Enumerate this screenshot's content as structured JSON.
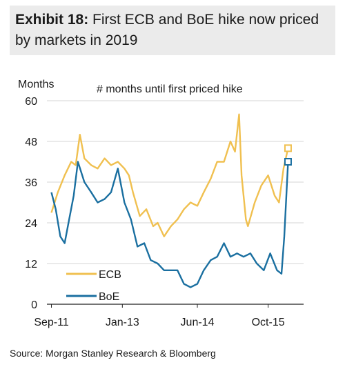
{
  "header": {
    "label": "Exhibit 18:",
    "title": "First ECB and BoE hike now priced by markets in 2019"
  },
  "source": "Source: Morgan Stanley Research & Bloomberg",
  "colors": {
    "ecb": "#f0c050",
    "boe": "#1a6fa0",
    "grid": "#d4d4d4",
    "axis": "#222222",
    "header_bg": "#ebebeb"
  },
  "chart_data": {
    "type": "line",
    "title": "# months until first priced hike",
    "ylabel": "Months",
    "xlabel": "",
    "ylim": [
      0,
      60
    ],
    "yticks": [
      0,
      12,
      24,
      36,
      48,
      60
    ],
    "xlim": [
      "2011-08-01",
      "2016-06-01"
    ],
    "xticks": [
      {
        "date": "2011-09-01",
        "label": "Sep-11"
      },
      {
        "date": "2013-01-01",
        "label": "Jan-13"
      },
      {
        "date": "2014-06-01",
        "label": "Jun-14"
      },
      {
        "date": "2015-10-01",
        "label": "Oct-15"
      }
    ],
    "grid": true,
    "legend_position": "bottom-left",
    "series": [
      {
        "name": "ECB",
        "color": "#f0c050",
        "marker": "square-end",
        "points": [
          [
            "2011-09-01",
            27
          ],
          [
            "2011-10-15",
            33
          ],
          [
            "2011-12-01",
            38
          ],
          [
            "2012-01-15",
            42
          ],
          [
            "2012-02-15",
            41
          ],
          [
            "2012-03-15",
            50
          ],
          [
            "2012-04-15",
            43
          ],
          [
            "2012-06-01",
            41
          ],
          [
            "2012-07-15",
            40
          ],
          [
            "2012-09-01",
            43
          ],
          [
            "2012-10-15",
            41
          ],
          [
            "2012-12-01",
            42
          ],
          [
            "2013-01-15",
            40
          ],
          [
            "2013-02-15",
            38
          ],
          [
            "2013-03-15",
            33
          ],
          [
            "2013-05-01",
            26
          ],
          [
            "2013-06-15",
            28
          ],
          [
            "2013-08-01",
            23
          ],
          [
            "2013-09-01",
            24
          ],
          [
            "2013-10-15",
            20
          ],
          [
            "2013-12-01",
            23
          ],
          [
            "2014-01-15",
            25
          ],
          [
            "2014-03-01",
            28
          ],
          [
            "2014-04-15",
            30
          ],
          [
            "2014-06-01",
            29
          ],
          [
            "2014-07-15",
            33
          ],
          [
            "2014-09-01",
            37
          ],
          [
            "2014-10-15",
            42
          ],
          [
            "2014-12-01",
            42
          ],
          [
            "2015-01-15",
            48
          ],
          [
            "2015-02-15",
            45
          ],
          [
            "2015-03-15",
            56
          ],
          [
            "2015-04-01",
            38
          ],
          [
            "2015-05-01",
            25
          ],
          [
            "2015-05-15",
            23
          ],
          [
            "2015-07-01",
            30
          ],
          [
            "2015-08-15",
            35
          ],
          [
            "2015-10-01",
            38
          ],
          [
            "2015-11-15",
            32
          ],
          [
            "2015-12-15",
            30
          ],
          [
            "2016-01-15",
            40
          ],
          [
            "2016-02-15",
            46
          ]
        ]
      },
      {
        "name": "BoE",
        "color": "#1a6fa0",
        "marker": "square-end",
        "points": [
          [
            "2011-09-01",
            33
          ],
          [
            "2011-10-01",
            28
          ],
          [
            "2011-11-01",
            20
          ],
          [
            "2011-12-01",
            18
          ],
          [
            "2012-01-01",
            25
          ],
          [
            "2012-02-01",
            32
          ],
          [
            "2012-03-01",
            42
          ],
          [
            "2012-04-15",
            36
          ],
          [
            "2012-06-01",
            33
          ],
          [
            "2012-07-15",
            30
          ],
          [
            "2012-09-01",
            31
          ],
          [
            "2012-10-15",
            33
          ],
          [
            "2012-12-01",
            40
          ],
          [
            "2013-01-15",
            30
          ],
          [
            "2013-03-01",
            25
          ],
          [
            "2013-04-15",
            17
          ],
          [
            "2013-06-01",
            18
          ],
          [
            "2013-07-15",
            13
          ],
          [
            "2013-09-01",
            12
          ],
          [
            "2013-10-15",
            10
          ],
          [
            "2013-12-01",
            10
          ],
          [
            "2014-01-15",
            10
          ],
          [
            "2014-03-01",
            6
          ],
          [
            "2014-04-15",
            5
          ],
          [
            "2014-06-01",
            6
          ],
          [
            "2014-07-15",
            10
          ],
          [
            "2014-09-01",
            13
          ],
          [
            "2014-10-15",
            14
          ],
          [
            "2014-12-01",
            18
          ],
          [
            "2015-01-15",
            14
          ],
          [
            "2015-03-01",
            15
          ],
          [
            "2015-04-15",
            14
          ],
          [
            "2015-06-01",
            15
          ],
          [
            "2015-07-15",
            12
          ],
          [
            "2015-09-01",
            10
          ],
          [
            "2015-10-15",
            15
          ],
          [
            "2015-12-01",
            10
          ],
          [
            "2016-01-01",
            9
          ],
          [
            "2016-01-20",
            20
          ],
          [
            "2016-02-15",
            42
          ]
        ]
      }
    ]
  }
}
